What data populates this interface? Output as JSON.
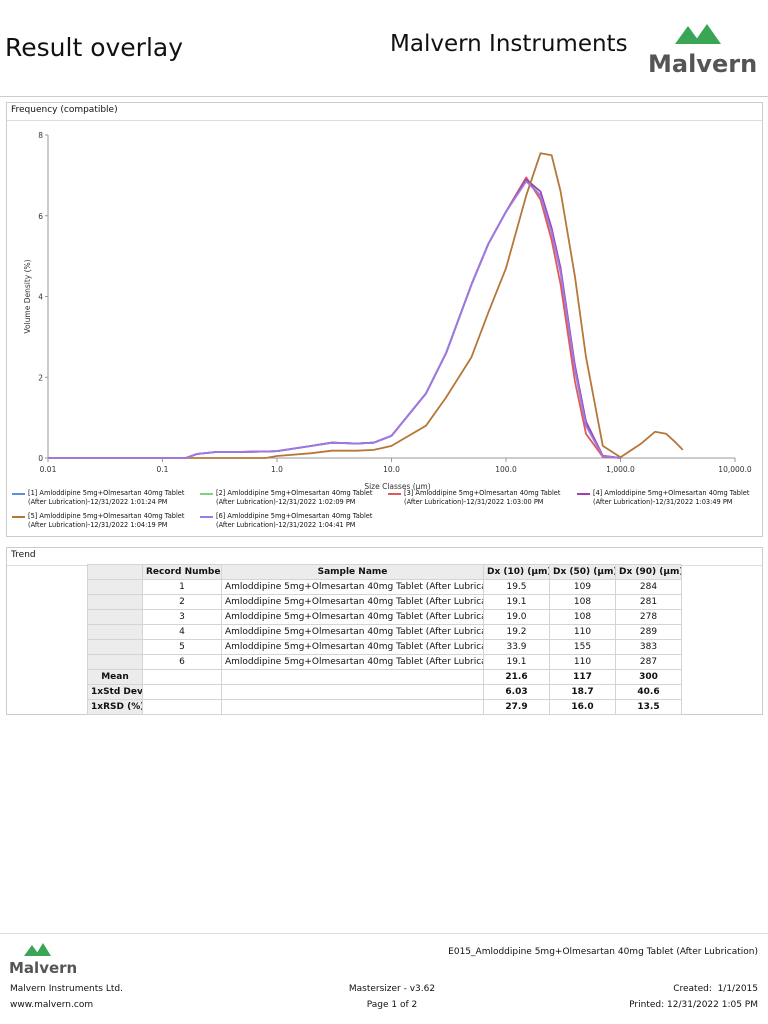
{
  "header": {
    "title": "Result overlay",
    "company": "Malvern Instruments",
    "logo": "Malvern"
  },
  "chart_data": {
    "type": "line",
    "title": "Frequency (compatible)",
    "x_label": "Size Classes (μm)",
    "y_label": "Volume Density (%)",
    "x_scale": "log",
    "xlim": [
      0.01,
      10000
    ],
    "xticks": [
      0.01,
      0.1,
      {
        "value": 1,
        "label": "1.0"
      },
      {
        "value": 10,
        "label": "10.0"
      },
      {
        "value": 100,
        "label": "100.0"
      },
      {
        "value": 1000,
        "label": "1,000.0"
      },
      {
        "value": 10000,
        "label": "10,000.0"
      }
    ],
    "ylim": [
      0,
      8
    ],
    "yticks": [
      0,
      2,
      4,
      6,
      8
    ],
    "x": [
      0.01,
      0.1,
      0.16,
      0.2,
      0.3,
      0.5,
      0.8,
      1,
      2,
      3,
      5,
      7,
      10,
      20,
      30,
      50,
      70,
      100,
      150,
      200,
      250,
      300,
      400,
      500,
      700,
      1000,
      1500,
      2000,
      2500,
      3000,
      3500
    ],
    "series": [
      {
        "name": "[1] Amloddipine 5mg+Olmesartan 40mg Tablet (After Lubrication)-12/31/2022 1:01:24 PM",
        "color": "#5b8fe0",
        "values": [
          0,
          0,
          0,
          0.1,
          0.15,
          0.15,
          0.16,
          0.17,
          0.3,
          0.38,
          0.36,
          0.38,
          0.55,
          1.6,
          2.6,
          4.3,
          5.3,
          6.1,
          6.9,
          6.5,
          5.6,
          4.6,
          2.2,
          0.8,
          0.05,
          0,
          null,
          null,
          null,
          null,
          null
        ]
      },
      {
        "name": "[2] Amloddipine 5mg+Olmesartan 40mg Tablet (After Lubrication)-12/31/2022 1:02:09 PM",
        "color": "#7fd37f",
        "values": [
          0,
          0,
          0,
          0.1,
          0.15,
          0.15,
          0.16,
          0.17,
          0.3,
          0.38,
          0.36,
          0.38,
          0.55,
          1.6,
          2.6,
          4.3,
          5.3,
          6.1,
          6.9,
          6.5,
          5.6,
          4.6,
          2.2,
          0.8,
          0.05,
          0,
          null,
          null,
          null,
          null,
          null
        ]
      },
      {
        "name": "[3] Amloddipine 5mg+Olmesartan 40mg Tablet (After Lubrication)-12/31/2022 1:03:00 PM",
        "color": "#e05a5a",
        "values": [
          0,
          0,
          0,
          0.1,
          0.15,
          0.15,
          0.16,
          0.17,
          0.3,
          0.38,
          0.36,
          0.38,
          0.55,
          1.6,
          2.6,
          4.3,
          5.3,
          6.1,
          6.95,
          6.4,
          5.4,
          4.3,
          1.9,
          0.6,
          0.03,
          0,
          null,
          null,
          null,
          null,
          null
        ]
      },
      {
        "name": "[4] Amloddipine 5mg+Olmesartan 40mg Tablet (After Lubrication)-12/31/2022 1:03:49 PM",
        "color": "#a040b0",
        "values": [
          0,
          0,
          0,
          0.1,
          0.15,
          0.15,
          0.16,
          0.17,
          0.3,
          0.38,
          0.36,
          0.38,
          0.55,
          1.6,
          2.6,
          4.3,
          5.3,
          6.1,
          6.9,
          6.6,
          5.7,
          4.7,
          2.3,
          0.9,
          0.06,
          0,
          null,
          null,
          null,
          null,
          null
        ]
      },
      {
        "name": "[5] Amloddipine 5mg+Olmesartan 40mg Tablet (After Lubrication)-12/31/2022 1:04:19 PM",
        "color": "#b5773a",
        "values": [
          0,
          0,
          0,
          0,
          0,
          0,
          0,
          0.05,
          0.12,
          0.18,
          0.18,
          0.2,
          0.3,
          0.8,
          1.5,
          2.5,
          3.6,
          4.7,
          6.5,
          7.55,
          7.5,
          6.6,
          4.5,
          2.5,
          0.3,
          0.02,
          0.35,
          0.65,
          0.6,
          0.4,
          0.2
        ]
      },
      {
        "name": "[6] Amloddipine 5mg+Olmesartan 40mg Tablet (After Lubrication)-12/31/2022 1:04:41 PM",
        "color": "#9b7be8",
        "values": [
          0,
          0,
          0,
          0.1,
          0.15,
          0.15,
          0.16,
          0.17,
          0.3,
          0.38,
          0.36,
          0.38,
          0.55,
          1.6,
          2.6,
          4.3,
          5.3,
          6.1,
          6.85,
          6.5,
          5.6,
          4.6,
          2.2,
          0.8,
          0.05,
          0,
          null,
          null,
          null,
          null,
          null
        ]
      }
    ]
  },
  "trend": {
    "title": "Trend",
    "columns": [
      "Record Number",
      "Sample Name",
      "Dx (10) (μm)",
      "Dx (50) (μm)",
      "Dx (90) (μm)"
    ],
    "records": [
      [
        "1",
        "Amloddipine 5mg+Olmesartan 40mg Tablet (After Lubrication)",
        "19.5",
        "109",
        "284"
      ],
      [
        "2",
        "Amloddipine 5mg+Olmesartan 40mg Tablet (After Lubrication)",
        "19.1",
        "108",
        "281"
      ],
      [
        "3",
        "Amloddipine 5mg+Olmesartan 40mg Tablet (After Lubrication)",
        "19.0",
        "108",
        "278"
      ],
      [
        "4",
        "Amloddipine 5mg+Olmesartan 40mg Tablet (After Lubrication)",
        "19.2",
        "110",
        "289"
      ],
      [
        "5",
        "Amloddipine 5mg+Olmesartan 40mg Tablet (After Lubrication)",
        "33.9",
        "155",
        "383"
      ],
      [
        "6",
        "Amloddipine 5mg+Olmesartan 40mg Tablet (After Lubrication)",
        "19.1",
        "110",
        "287"
      ]
    ],
    "stats": [
      [
        "Mean",
        "21.6",
        "117",
        "300"
      ],
      [
        "1xStd Dev",
        "6.03",
        "18.7",
        "40.6"
      ],
      [
        "1xRSD (%)",
        "27.9",
        "16.0",
        "13.5"
      ]
    ]
  },
  "footer": {
    "logo": "Malvern",
    "file": "E015_Amloddipine 5mg+Olmesartan 40mg Tablet (After Lubrication)",
    "company": "Malvern Instruments Ltd.",
    "website": "www.malvern.com",
    "software": "Mastersizer - v3.62",
    "page": "Page 1 of 2",
    "created": "Created:  1/1/2015",
    "printed": "Printed: 12/31/2022 1:05 PM"
  }
}
